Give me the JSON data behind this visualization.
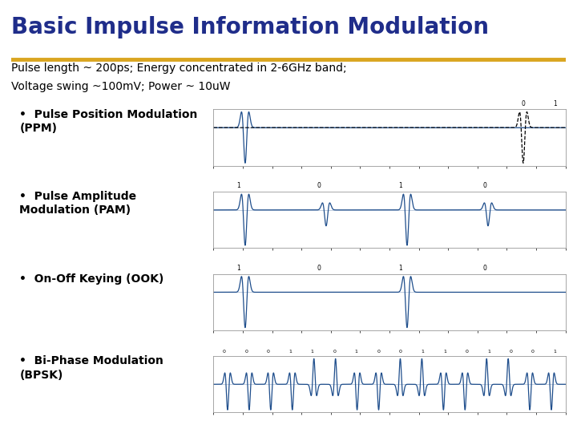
{
  "title": "Basic Impulse Information Modulation",
  "title_color": "#1F2D8A",
  "title_fontsize": 20,
  "separator_color": "#DAA520",
  "bg_color": "#FFFFFF",
  "line1": "Pulse length ~ 200ps; Energy concentrated in 2-6GHz band;",
  "line2": "Voltage swing ~100mV; Power ~ 10uW",
  "bullets": [
    "Pulse Position Modulation\n(PPM)",
    "Pulse Amplitude\nModulation (PAM)",
    "On-Off Keying (OOK)",
    "Bi-Phase Modulation\n(BPSK)"
  ],
  "plot_color": "#1F4E8C",
  "plot_bg": "#FFFFFF",
  "text_fontsize": 10,
  "bullet_fontsize": 10
}
